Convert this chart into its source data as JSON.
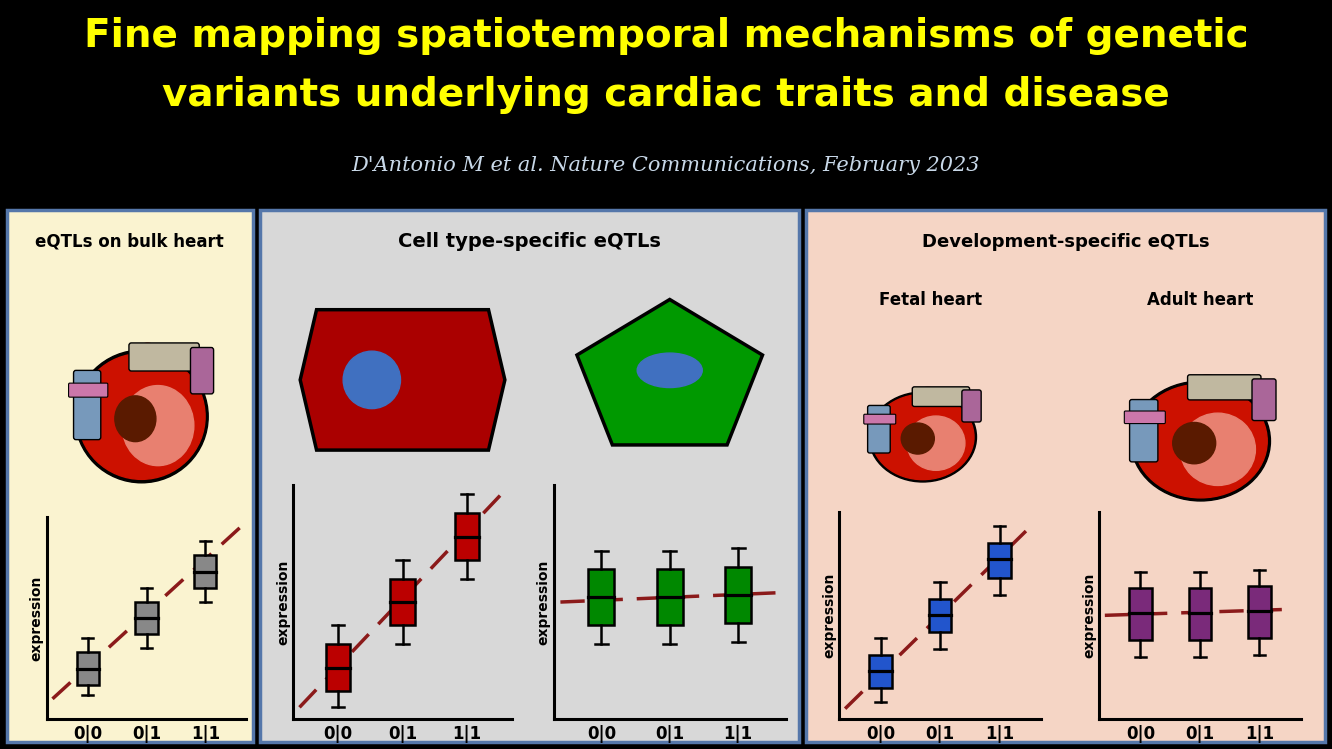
{
  "bg_color": "#000000",
  "title_line1": "Fine mapping spatiotemporal mechanisms of genetic",
  "title_line2": "variants underlying cardiac traits and disease",
  "subtitle": "D'Antonio M et al. Nature Communications, February 2023",
  "title_color": "#ffff00",
  "subtitle_color": "#c8d8e8",
  "panel1_bg": "#faf3d0",
  "panel2_bg": "#d8d8d8",
  "panel3_bg": "#f5d5c5",
  "panel1_title": "eQTLs on bulk heart",
  "panel2_title": "Cell type-specific eQTLs",
  "panel3_title": "Development-specific eQTLs",
  "panel3_sub1": "Fetal heart",
  "panel3_sub2": "Adult heart",
  "xtick_labels": [
    "0|0",
    "0|1",
    "1|1"
  ],
  "ylabel": "expression",
  "box_gray_color": "#888888",
  "box_red_color": "#bb0000",
  "box_green_color": "#008800",
  "box_blue_color": "#2255cc",
  "box_purple_color": "#7a2a7a",
  "dashed_line_color": "#8b1a1a",
  "cell1_body_color": "#aa0000",
  "cell1_nucleus_color": "#4070c0",
  "cell2_body_color": "#009900",
  "cell2_nucleus_color": "#4070c0",
  "border_color": "#4466aa"
}
